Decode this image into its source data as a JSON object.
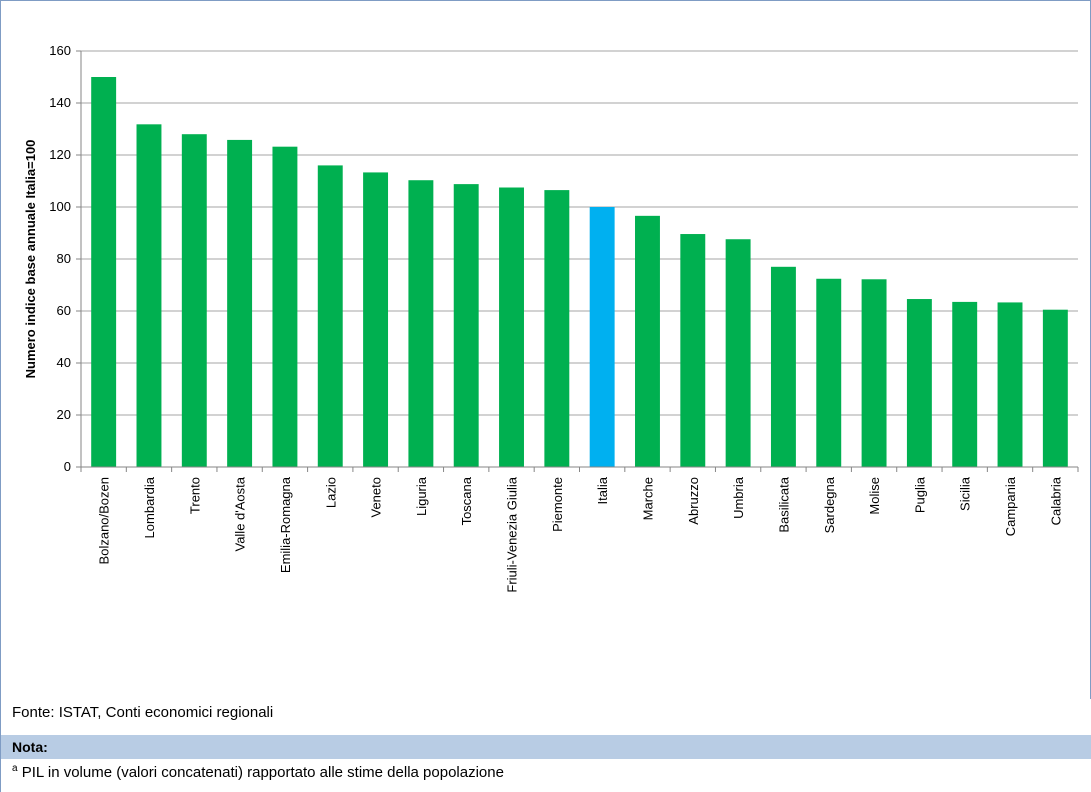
{
  "chart_data": {
    "type": "bar",
    "ylabel": "Numero indice base annuale Italia=100",
    "ylim": [
      0,
      160
    ],
    "yticks": [
      0,
      20,
      40,
      60,
      80,
      100,
      120,
      140,
      160
    ],
    "grid": true,
    "categories": [
      "Bolzano/Bozen",
      "Lombardia",
      "Trento",
      "Valle d'Aosta",
      "Emilia-Romagna",
      "Lazio",
      "Veneto",
      "Liguria",
      "Toscana",
      "Friuli-Venezia Giulia",
      "Piemonte",
      "Italia",
      "Marche",
      "Abruzzo",
      "Umbria",
      "Basilicata",
      "Sardegna",
      "Molise",
      "Puglia",
      "Sicilia",
      "Campania",
      "Calabria"
    ],
    "values": [
      150,
      131.8,
      128,
      125.8,
      123.2,
      116,
      113.3,
      110.3,
      108.8,
      107.5,
      106.5,
      100,
      96.6,
      89.6,
      87.6,
      77,
      72.4,
      72.2,
      64.6,
      63.5,
      63.3,
      60.5
    ],
    "colors": {
      "bar": "#00b050",
      "highlight": "#00b0f0",
      "highlight_category": "Italia",
      "grid": "#a6a6a6"
    }
  },
  "source": "Fonte: ISTAT, Conti economici regionali",
  "note": {
    "title": "Nota:",
    "marker": "a",
    "text": " PIL in volume (valori concatenati) rapportato alle stime della popolazione"
  }
}
